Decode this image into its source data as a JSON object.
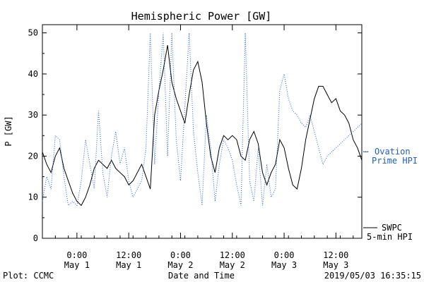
{
  "footer": {
    "plot_credit": "Plot: CCMC",
    "timestamp": "2019/05/03 16:35:15"
  },
  "colors": {
    "swpc": "#000000",
    "ovation": "#1f5fbf"
  },
  "chart_data": {
    "type": "line",
    "title": "Hemispheric Power [GW]",
    "xlabel": "Date and Time",
    "ylabel": "P [GW]",
    "xlim": [
      "2019-04-30T16:00",
      "2019-05-03T18:00"
    ],
    "ylim": [
      0,
      52
    ],
    "grid": false,
    "y_ticks": [
      0,
      10,
      20,
      30,
      40,
      50
    ],
    "x_ticks": [
      {
        "t": "2019-05-01T00:00",
        "time": "0:00",
        "date": "May 1"
      },
      {
        "t": "2019-05-01T12:00",
        "time": "12:00",
        "date": "May 1"
      },
      {
        "t": "2019-05-02T00:00",
        "time": "0:00",
        "date": "May 2"
      },
      {
        "t": "2019-05-02T12:00",
        "time": "12:00",
        "date": "May 2"
      },
      {
        "t": "2019-05-03T00:00",
        "time": "0:00",
        "date": "May 3"
      },
      {
        "t": "2019-05-03T12:00",
        "time": "12:00",
        "date": "May 3"
      }
    ],
    "legend_placement": "right",
    "series": [
      {
        "name": "SWPC 5-min HPI",
        "style": "solid",
        "x": [
          "2019-04-30T16:00",
          "2019-04-30T17:00",
          "2019-04-30T18:00",
          "2019-04-30T19:00",
          "2019-04-30T20:00",
          "2019-04-30T21:00",
          "2019-04-30T22:00",
          "2019-04-30T23:00",
          "2019-05-01T00:00",
          "2019-05-01T01:00",
          "2019-05-01T02:00",
          "2019-05-01T03:00",
          "2019-05-01T04:00",
          "2019-05-01T05:00",
          "2019-05-01T06:00",
          "2019-05-01T07:00",
          "2019-05-01T08:00",
          "2019-05-01T09:00",
          "2019-05-01T10:00",
          "2019-05-01T11:00",
          "2019-05-01T12:00",
          "2019-05-01T13:00",
          "2019-05-01T14:00",
          "2019-05-01T15:00",
          "2019-05-01T16:00",
          "2019-05-01T17:00",
          "2019-05-01T18:00",
          "2019-05-01T19:00",
          "2019-05-01T20:00",
          "2019-05-01T21:00",
          "2019-05-01T22:00",
          "2019-05-01T23:00",
          "2019-05-02T00:00",
          "2019-05-02T01:00",
          "2019-05-02T02:00",
          "2019-05-02T03:00",
          "2019-05-02T04:00",
          "2019-05-02T05:00",
          "2019-05-02T06:00",
          "2019-05-02T07:00",
          "2019-05-02T08:00",
          "2019-05-02T09:00",
          "2019-05-02T10:00",
          "2019-05-02T11:00",
          "2019-05-02T12:00",
          "2019-05-02T13:00",
          "2019-05-02T14:00",
          "2019-05-02T15:00",
          "2019-05-02T16:00",
          "2019-05-02T17:00",
          "2019-05-02T18:00",
          "2019-05-02T19:00",
          "2019-05-02T20:00",
          "2019-05-02T21:00",
          "2019-05-02T22:00",
          "2019-05-02T23:00",
          "2019-05-03T00:00",
          "2019-05-03T01:00",
          "2019-05-03T02:00",
          "2019-05-03T03:00",
          "2019-05-03T04:00",
          "2019-05-03T05:00",
          "2019-05-03T06:00",
          "2019-05-03T07:00",
          "2019-05-03T08:00",
          "2019-05-03T09:00",
          "2019-05-03T10:00",
          "2019-05-03T11:00",
          "2019-05-03T12:00",
          "2019-05-03T13:00",
          "2019-05-03T14:00",
          "2019-05-03T15:00",
          "2019-05-03T16:00",
          "2019-05-03T17:00",
          "2019-05-03T18:00"
        ],
        "y": [
          21,
          18,
          16,
          20,
          22,
          17,
          14,
          11,
          9,
          8,
          10,
          13,
          17,
          19,
          18,
          17,
          19,
          17,
          16,
          15,
          13,
          14,
          16,
          18,
          15,
          12,
          30,
          36,
          41,
          47,
          38,
          34,
          31,
          28,
          35,
          41,
          43,
          38,
          28,
          20,
          16,
          22,
          25,
          24,
          25,
          24,
          20,
          19,
          24,
          26,
          23,
          16,
          13,
          16,
          18,
          24,
          22,
          17,
          13,
          12,
          17,
          24,
          29,
          34,
          37,
          37,
          35,
          33,
          34,
          31,
          30,
          28,
          24,
          22,
          19
        ]
      },
      {
        "name": "Ovation Prime HPI",
        "style": "dotted",
        "x": [
          "2019-04-30T16:00",
          "2019-04-30T17:00",
          "2019-04-30T18:00",
          "2019-04-30T19:00",
          "2019-04-30T20:00",
          "2019-04-30T21:00",
          "2019-04-30T22:00",
          "2019-04-30T23:00",
          "2019-05-01T00:00",
          "2019-05-01T01:00",
          "2019-05-01T02:00",
          "2019-05-01T03:00",
          "2019-05-01T04:00",
          "2019-05-01T05:00",
          "2019-05-01T06:00",
          "2019-05-01T07:00",
          "2019-05-01T08:00",
          "2019-05-01T09:00",
          "2019-05-01T10:00",
          "2019-05-01T11:00",
          "2019-05-01T12:00",
          "2019-05-01T13:00",
          "2019-05-01T14:00",
          "2019-05-01T15:00",
          "2019-05-01T16:00",
          "2019-05-01T17:00",
          "2019-05-01T18:00",
          "2019-05-01T19:00",
          "2019-05-01T20:00",
          "2019-05-01T21:00",
          "2019-05-01T22:00",
          "2019-05-01T23:00",
          "2019-05-02T00:00",
          "2019-05-02T01:00",
          "2019-05-02T02:00",
          "2019-05-02T03:00",
          "2019-05-02T04:00",
          "2019-05-02T05:00",
          "2019-05-02T06:00",
          "2019-05-02T07:00",
          "2019-05-02T08:00",
          "2019-05-02T09:00",
          "2019-05-02T10:00",
          "2019-05-02T11:00",
          "2019-05-02T12:00",
          "2019-05-02T13:00",
          "2019-05-02T14:00",
          "2019-05-02T15:00",
          "2019-05-02T16:00",
          "2019-05-02T17:00",
          "2019-05-02T18:00",
          "2019-05-02T19:00",
          "2019-05-02T20:00",
          "2019-05-02T21:00",
          "2019-05-02T22:00",
          "2019-05-02T23:00",
          "2019-05-03T00:00",
          "2019-05-03T01:00",
          "2019-05-03T02:00",
          "2019-05-03T03:00",
          "2019-05-03T04:00",
          "2019-05-03T05:00",
          "2019-05-03T06:00",
          "2019-05-03T07:00",
          "2019-05-03T08:00",
          "2019-05-03T09:00",
          "2019-05-03T10:00",
          "2019-05-03T11:00",
          "2019-05-03T12:00",
          "2019-05-03T13:00",
          "2019-05-03T14:00",
          "2019-05-03T15:00",
          "2019-05-03T16:00",
          "2019-05-03T17:00",
          "2019-05-03T18:00"
        ],
        "y": [
          9,
          15,
          12,
          25,
          24,
          15,
          8,
          9,
          8,
          14,
          24,
          18,
          12,
          31,
          16,
          10,
          20,
          26,
          18,
          22,
          14,
          10,
          12,
          14,
          22,
          50,
          18,
          36,
          50,
          20,
          50,
          24,
          14,
          32,
          50,
          26,
          16,
          8,
          30,
          22,
          9,
          18,
          24,
          22,
          19,
          13,
          8,
          50,
          14,
          9,
          22,
          8,
          18,
          10,
          12,
          36,
          40,
          34,
          31,
          30,
          28,
          27,
          30,
          26,
          22,
          18,
          20,
          21,
          22,
          23,
          24,
          25,
          26,
          27,
          28
        ]
      }
    ],
    "legend": [
      {
        "text_line1": "SWPC",
        "text_line2": "5-min HPI",
        "series": "SWPC 5-min HPI"
      },
      {
        "text_line1": "Ovation",
        "text_line2": "Prime HPI",
        "series": "Ovation Prime HPI"
      }
    ]
  }
}
